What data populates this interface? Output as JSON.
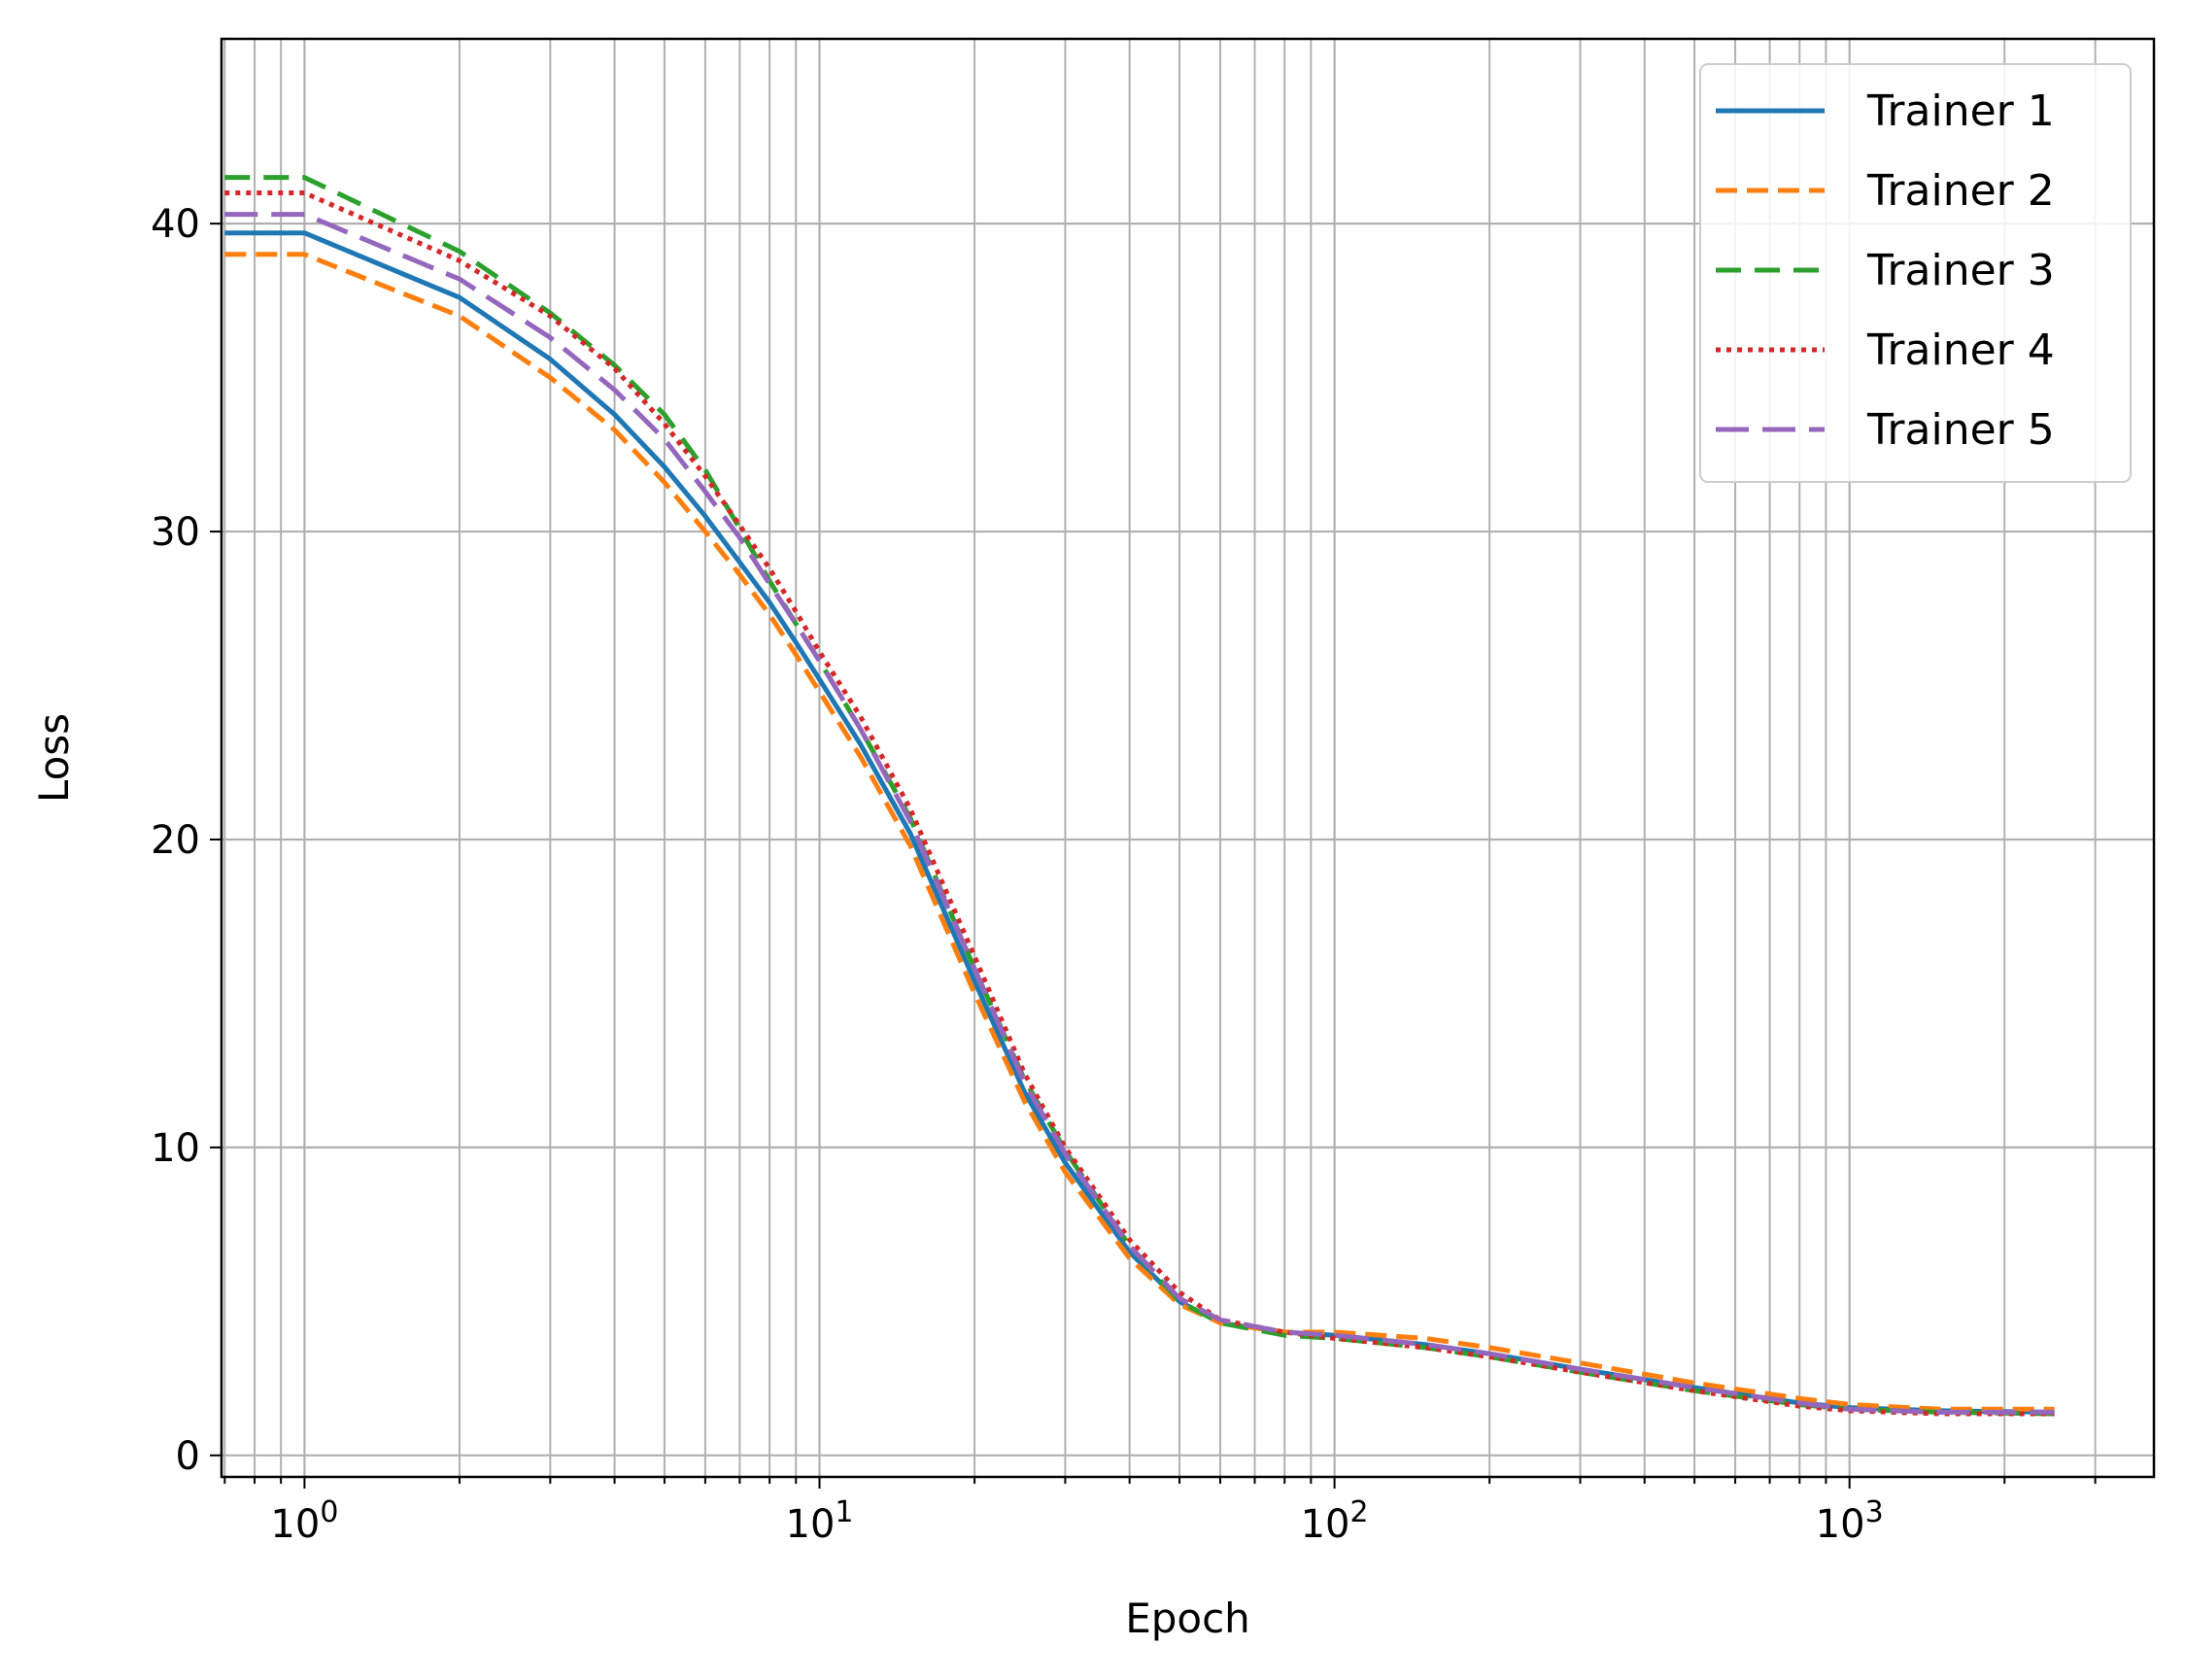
{
  "chart_data": {
    "type": "line",
    "xlabel": "Epoch",
    "ylabel": "Loss",
    "x_scale": "log",
    "xlim": [
      0.69,
      3900
    ],
    "ylim": [
      -0.7,
      46
    ],
    "x_major_ticks": [
      {
        "value": 1,
        "base": "10",
        "exp": "0"
      },
      {
        "value": 10,
        "base": "10",
        "exp": "1"
      },
      {
        "value": 100,
        "base": "10",
        "exp": "2"
      },
      {
        "value": 1000,
        "base": "10",
        "exp": "3"
      }
    ],
    "y_ticks": [
      0,
      10,
      20,
      30,
      40
    ],
    "grid": true,
    "legend_position": "top-right",
    "x": [
      0.7,
      1,
      2,
      3,
      4,
      5,
      6,
      7,
      8,
      9,
      10,
      12,
      15,
      20,
      25,
      30,
      40,
      50,
      60,
      80,
      100,
      150,
      200,
      300,
      500,
      800,
      1000,
      1500,
      2500
    ],
    "series": [
      {
        "name": "Trainer 1",
        "color": "#1f77b4",
        "dash": "",
        "values": [
          39.7,
          39.7,
          37.6,
          35.6,
          33.8,
          32.1,
          30.5,
          29.0,
          27.7,
          26.4,
          25.2,
          23.1,
          20.2,
          15.4,
          11.8,
          9.5,
          6.6,
          5.0,
          4.3,
          4.0,
          3.9,
          3.6,
          3.3,
          2.8,
          2.2,
          1.7,
          1.55,
          1.45,
          1.4
        ]
      },
      {
        "name": "Trainer 2",
        "color": "#ff7f0e",
        "dash": "22 10",
        "values": [
          39.0,
          39.0,
          37.0,
          35.0,
          33.3,
          31.6,
          30.0,
          28.6,
          27.3,
          26.0,
          24.8,
          22.7,
          19.8,
          15.0,
          11.5,
          9.2,
          6.4,
          4.9,
          4.3,
          4.0,
          4.0,
          3.8,
          3.5,
          3.0,
          2.35,
          1.85,
          1.65,
          1.5,
          1.5
        ]
      },
      {
        "name": "Trainer 3",
        "color": "#2ca02c",
        "dash": "26 14",
        "values": [
          41.5,
          41.5,
          39.1,
          37.1,
          35.4,
          33.8,
          32.0,
          30.1,
          28.4,
          27.0,
          25.8,
          23.6,
          20.7,
          15.8,
          12.2,
          9.9,
          6.8,
          5.0,
          4.3,
          3.9,
          3.8,
          3.5,
          3.2,
          2.7,
          2.1,
          1.65,
          1.5,
          1.4,
          1.35
        ]
      },
      {
        "name": "Trainer 4",
        "color": "#d62728",
        "dash": "5 6",
        "values": [
          41.0,
          41.0,
          38.8,
          37.0,
          35.3,
          33.5,
          31.8,
          30.2,
          28.8,
          27.4,
          26.1,
          24.0,
          21.0,
          16.2,
          12.4,
          10.0,
          7.0,
          5.3,
          4.4,
          4.0,
          3.8,
          3.5,
          3.2,
          2.7,
          2.1,
          1.6,
          1.45,
          1.35,
          1.35
        ]
      },
      {
        "name": "Trainer 5",
        "color": "#9467bd",
        "dash": "34 14",
        "values": [
          40.3,
          40.3,
          38.2,
          36.3,
          34.6,
          33.0,
          31.3,
          29.8,
          28.3,
          27.0,
          25.8,
          23.6,
          20.6,
          15.8,
          12.1,
          9.8,
          6.8,
          5.1,
          4.4,
          4.0,
          3.9,
          3.6,
          3.3,
          2.8,
          2.2,
          1.7,
          1.5,
          1.4,
          1.4
        ]
      }
    ]
  }
}
